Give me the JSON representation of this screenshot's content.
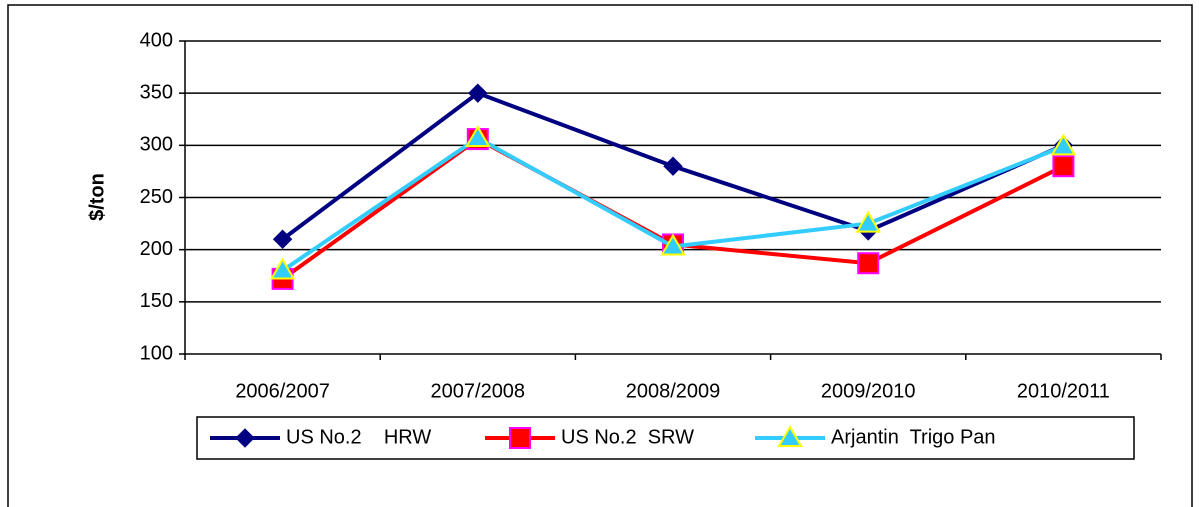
{
  "chart_data": {
    "type": "line",
    "y_label": "$/ton",
    "categories": [
      "2006/2007",
      "2007/2008",
      "2008/2009",
      "2009/2010",
      "2010/2011"
    ],
    "series": [
      {
        "name": "US No.2    HRW",
        "color": "#000080",
        "marker": "diamond",
        "values": [
          210,
          350,
          280,
          218,
          300
        ]
      },
      {
        "name": "US No.2  SRW",
        "color": "#ff0000",
        "marker": "square",
        "values": [
          172,
          306,
          205,
          187,
          280
        ]
      },
      {
        "name": "Arjantin  Trigo Pan",
        "color": "#33ccff",
        "marker": "triangle",
        "values": [
          180,
          307,
          203,
          225,
          299
        ]
      }
    ],
    "ylim": [
      100,
      400
    ],
    "yticks": [
      100,
      150,
      200,
      250,
      300,
      350,
      400
    ],
    "grid": true,
    "legend": "bottom"
  }
}
